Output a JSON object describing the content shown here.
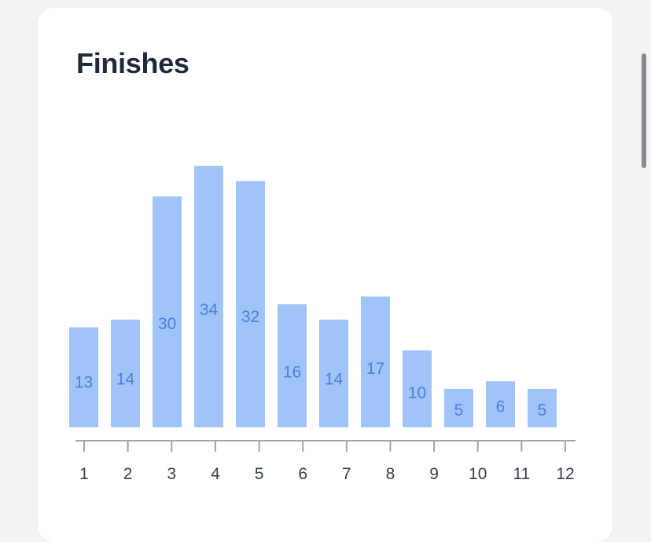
{
  "card": {
    "title": "Finishes"
  },
  "chart_data": {
    "type": "bar",
    "categories": [
      "1",
      "2",
      "3",
      "4",
      "5",
      "6",
      "7",
      "8",
      "9",
      "10",
      "11",
      "12"
    ],
    "values": [
      13,
      14,
      30,
      34,
      32,
      16,
      14,
      17,
      10,
      5,
      6,
      5
    ],
    "title": "Finishes",
    "xlabel": "",
    "ylabel": "",
    "ylim": [
      0,
      34
    ],
    "grid": false,
    "legend": "none",
    "colors": {
      "bar": "#a0c4f8",
      "bar_label": "#4a7fdc",
      "axis": "#9ca3af",
      "tick_label": "#374151"
    }
  }
}
